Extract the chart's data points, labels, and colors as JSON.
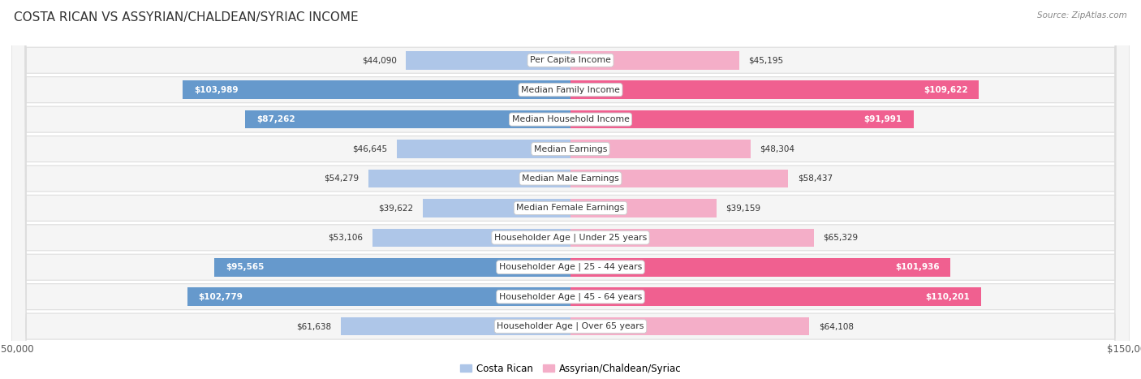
{
  "title": "COSTA RICAN VS ASSYRIAN/CHALDEAN/SYRIAC INCOME",
  "source": "Source: ZipAtlas.com",
  "categories": [
    "Per Capita Income",
    "Median Family Income",
    "Median Household Income",
    "Median Earnings",
    "Median Male Earnings",
    "Median Female Earnings",
    "Householder Age | Under 25 years",
    "Householder Age | 25 - 44 years",
    "Householder Age | 45 - 64 years",
    "Householder Age | Over 65 years"
  ],
  "costa_rican": [
    44090,
    103989,
    87262,
    46645,
    54279,
    39622,
    53106,
    95565,
    102779,
    61638
  ],
  "assyrian": [
    45195,
    109622,
    91991,
    48304,
    58437,
    39159,
    65329,
    101936,
    110201,
    64108
  ],
  "max_val": 150000,
  "blue_light": "#aec6e8",
  "blue_dark": "#6699cc",
  "pink_light": "#f4aec8",
  "pink_dark": "#f06090",
  "threshold": 70000,
  "row_bg": "#f5f5f5",
  "row_border": "#dddddd",
  "bar_height": 0.62,
  "legend_blue": "Costa Rican",
  "legend_pink": "Assyrian/Chaldean/Syriac"
}
